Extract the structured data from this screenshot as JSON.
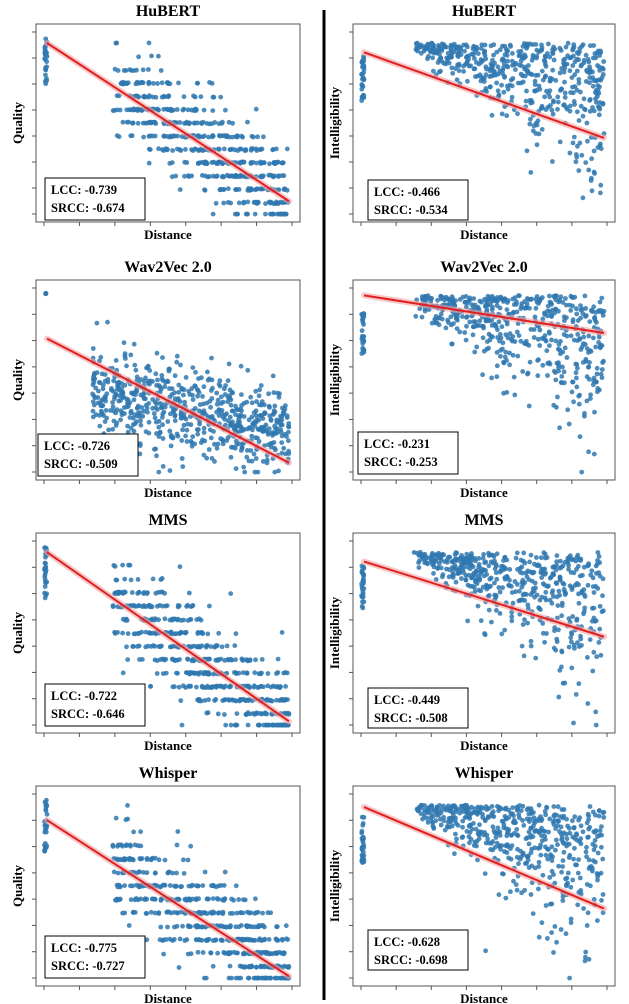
{
  "chart_data": [
    {
      "type": "scatter",
      "title": "HuBERT",
      "xlabel": "Distance",
      "ylabel": "Quality",
      "stats": {
        "lcc": "LCC: -0.739",
        "srcc": "SRCC: -0.674"
      },
      "xlim": [
        0,
        1
      ],
      "ylim": [
        0,
        1
      ],
      "fit_line": [
        [
          0.02,
          0.93
        ],
        [
          0.98,
          0.08
        ]
      ],
      "color": "#2f78b0",
      "line_color": "#e02020"
    },
    {
      "type": "scatter",
      "title": "HuBERT",
      "xlabel": "Distance",
      "ylabel": "Intelligibility",
      "stats": {
        "lcc": "LCC: -0.466",
        "srcc": "SRCC: -0.534"
      },
      "xlim": [
        0,
        1
      ],
      "ylim": [
        0,
        1
      ],
      "fit_line": [
        [
          0.02,
          0.88
        ],
        [
          0.98,
          0.42
        ]
      ],
      "color": "#2f78b0",
      "line_color": "#e02020"
    },
    {
      "type": "scatter",
      "title": "Wav2Vec 2.0",
      "xlabel": "Distance",
      "ylabel": "Quality",
      "stats": {
        "lcc": "LCC: -0.726",
        "srcc": "SRCC: -0.509"
      },
      "xlim": [
        0,
        1
      ],
      "ylim": [
        0,
        1
      ],
      "fit_line": [
        [
          0.02,
          0.72
        ],
        [
          0.98,
          0.06
        ]
      ],
      "color": "#2f78b0",
      "line_color": "#e02020"
    },
    {
      "type": "scatter",
      "title": "Wav2Vec 2.0",
      "xlabel": "Distance",
      "ylabel": "Intelligibility",
      "stats": {
        "lcc": "LCC: -0.231",
        "srcc": "SRCC: -0.253"
      },
      "xlim": [
        0,
        1
      ],
      "ylim": [
        0,
        1
      ],
      "fit_line": [
        [
          0.02,
          0.95
        ],
        [
          0.98,
          0.75
        ]
      ],
      "color": "#2f78b0",
      "line_color": "#e02020"
    },
    {
      "type": "scatter",
      "title": "MMS",
      "xlabel": "Distance",
      "ylabel": "Quality",
      "stats": {
        "lcc": "LCC: -0.722",
        "srcc": "SRCC: -0.646"
      },
      "xlim": [
        0,
        1
      ],
      "ylim": [
        0,
        1
      ],
      "fit_line": [
        [
          0.02,
          0.93
        ],
        [
          0.98,
          0.03
        ]
      ],
      "color": "#2f78b0",
      "line_color": "#e02020"
    },
    {
      "type": "scatter",
      "title": "MMS",
      "xlabel": "Distance",
      "ylabel": "Intelligibility",
      "stats": {
        "lcc": "LCC: -0.449",
        "srcc": "SRCC: -0.508"
      },
      "xlim": [
        0,
        1
      ],
      "ylim": [
        0,
        1
      ],
      "fit_line": [
        [
          0.02,
          0.88
        ],
        [
          0.98,
          0.48
        ]
      ],
      "color": "#2f78b0",
      "line_color": "#e02020"
    },
    {
      "type": "scatter",
      "title": "Whisper",
      "xlabel": "Distance",
      "ylabel": "Quality",
      "stats": {
        "lcc": "LCC: -0.775",
        "srcc": "SRCC: -0.727"
      },
      "xlim": [
        0,
        1
      ],
      "ylim": [
        0,
        1
      ],
      "fit_line": [
        [
          0.02,
          0.85
        ],
        [
          0.98,
          0.02
        ]
      ],
      "color": "#2f78b0",
      "line_color": "#e02020"
    },
    {
      "type": "scatter",
      "title": "Whisper",
      "xlabel": "Distance",
      "ylabel": "Intelligibility",
      "stats": {
        "lcc": "LCC: -0.628",
        "srcc": "SRCC: -0.698"
      },
      "xlim": [
        0,
        1
      ],
      "ylim": [
        0,
        1
      ],
      "fit_line": [
        [
          0.02,
          0.92
        ],
        [
          0.98,
          0.38
        ]
      ],
      "color": "#2f78b0",
      "line_color": "#e02020"
    }
  ]
}
